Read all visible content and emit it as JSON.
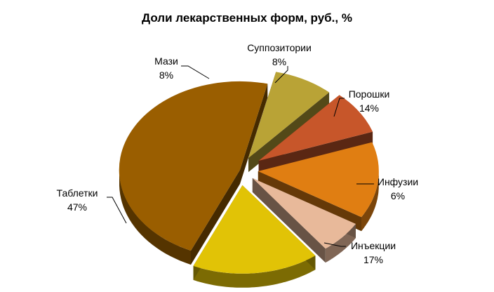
{
  "chart_data": {
    "type": "pie",
    "title": "Доли лекарственных форм, руб., %",
    "slices": [
      {
        "label": "Таблетки",
        "value": 47,
        "value_text": "47%",
        "color": "#9A5E00"
      },
      {
        "label": "Мази",
        "value": 8,
        "value_text": "8%",
        "color": "#B9A336"
      },
      {
        "label": "Суппозитории",
        "value": 8,
        "value_text": "8%",
        "color": "#C7562A"
      },
      {
        "label": "Порошки",
        "value": 14,
        "value_text": "14%",
        "color": "#E07E12"
      },
      {
        "label": "Инфузии",
        "value": 6,
        "value_text": "6%",
        "color": "#E8B99A"
      },
      {
        "label": "Инъекции",
        "value": 17,
        "value_text": "17%",
        "color": "#E1C306"
      }
    ],
    "legend": "none",
    "style": "3d-exploded"
  }
}
